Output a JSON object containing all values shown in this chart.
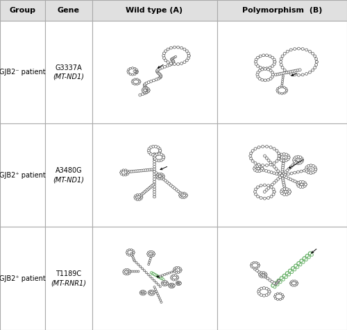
{
  "col_headers": [
    "Group",
    "Gene",
    "Wild type (A)",
    "Polymorphism  (B)"
  ],
  "col_bounds": [
    0.0,
    0.13,
    0.265,
    0.625,
    1.0
  ],
  "row_bounds": [
    0.0,
    0.063,
    0.375,
    0.688,
    1.0
  ],
  "row_groups": [
    "GJB2⁻ patient",
    "GJB2⁺ patient",
    "GJB2⁺ patient"
  ],
  "row_genes": [
    [
      "G3337A",
      "(MT-ND1)"
    ],
    [
      "A3480G",
      "(MT-ND1)"
    ],
    [
      "T1189C",
      "(MT-RNR1)"
    ]
  ],
  "header_fontsize": 8,
  "cell_fontsize": 7,
  "header_bg": "#e0e0e0",
  "border_color": "#aaaaaa",
  "fig_bg": "#ffffff",
  "node_color": "#555555",
  "green_color": "#5aaa5a"
}
